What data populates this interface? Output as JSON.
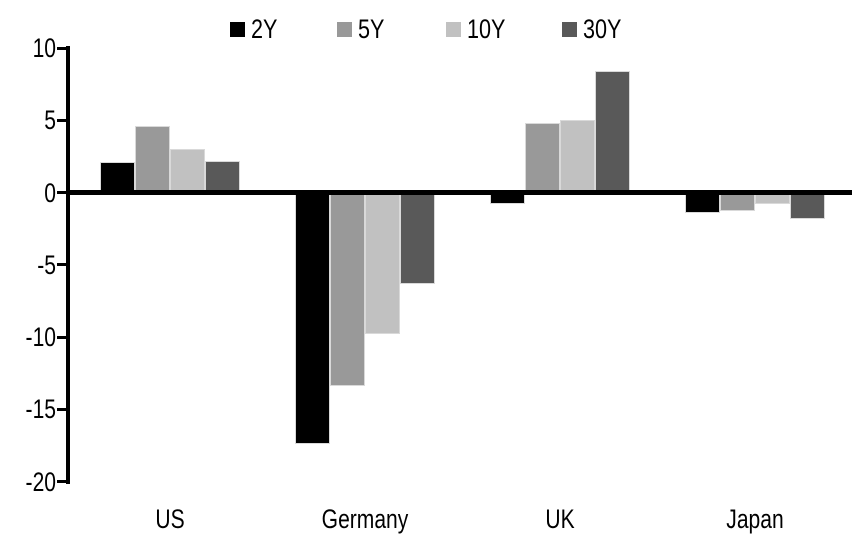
{
  "chart_data": {
    "type": "bar",
    "title": "",
    "categories": [
      "US",
      "Germany",
      "UK",
      "Japan"
    ],
    "series": [
      {
        "name": "2Y",
        "color": "#000000",
        "values": [
          2.1,
          -17.4,
          -0.8,
          -1.4
        ]
      },
      {
        "name": "5Y",
        "color": "#999999",
        "values": [
          4.6,
          -13.4,
          4.8,
          -1.3
        ]
      },
      {
        "name": "10Y",
        "color": "#c1c1c1",
        "values": [
          3.0,
          -9.8,
          5.0,
          -0.8
        ]
      },
      {
        "name": "30Y",
        "color": "#595959",
        "values": [
          2.2,
          -6.3,
          8.4,
          -1.8
        ]
      }
    ],
    "xlabel": "",
    "ylabel": "",
    "ylim": [
      -20,
      10
    ],
    "ytick_step": 5,
    "yticks": [
      10,
      5,
      0,
      -5,
      -10,
      -15,
      -20
    ],
    "grid": false,
    "legend_position": "top",
    "axis_color": "#000000",
    "background_color": "#ffffff"
  }
}
